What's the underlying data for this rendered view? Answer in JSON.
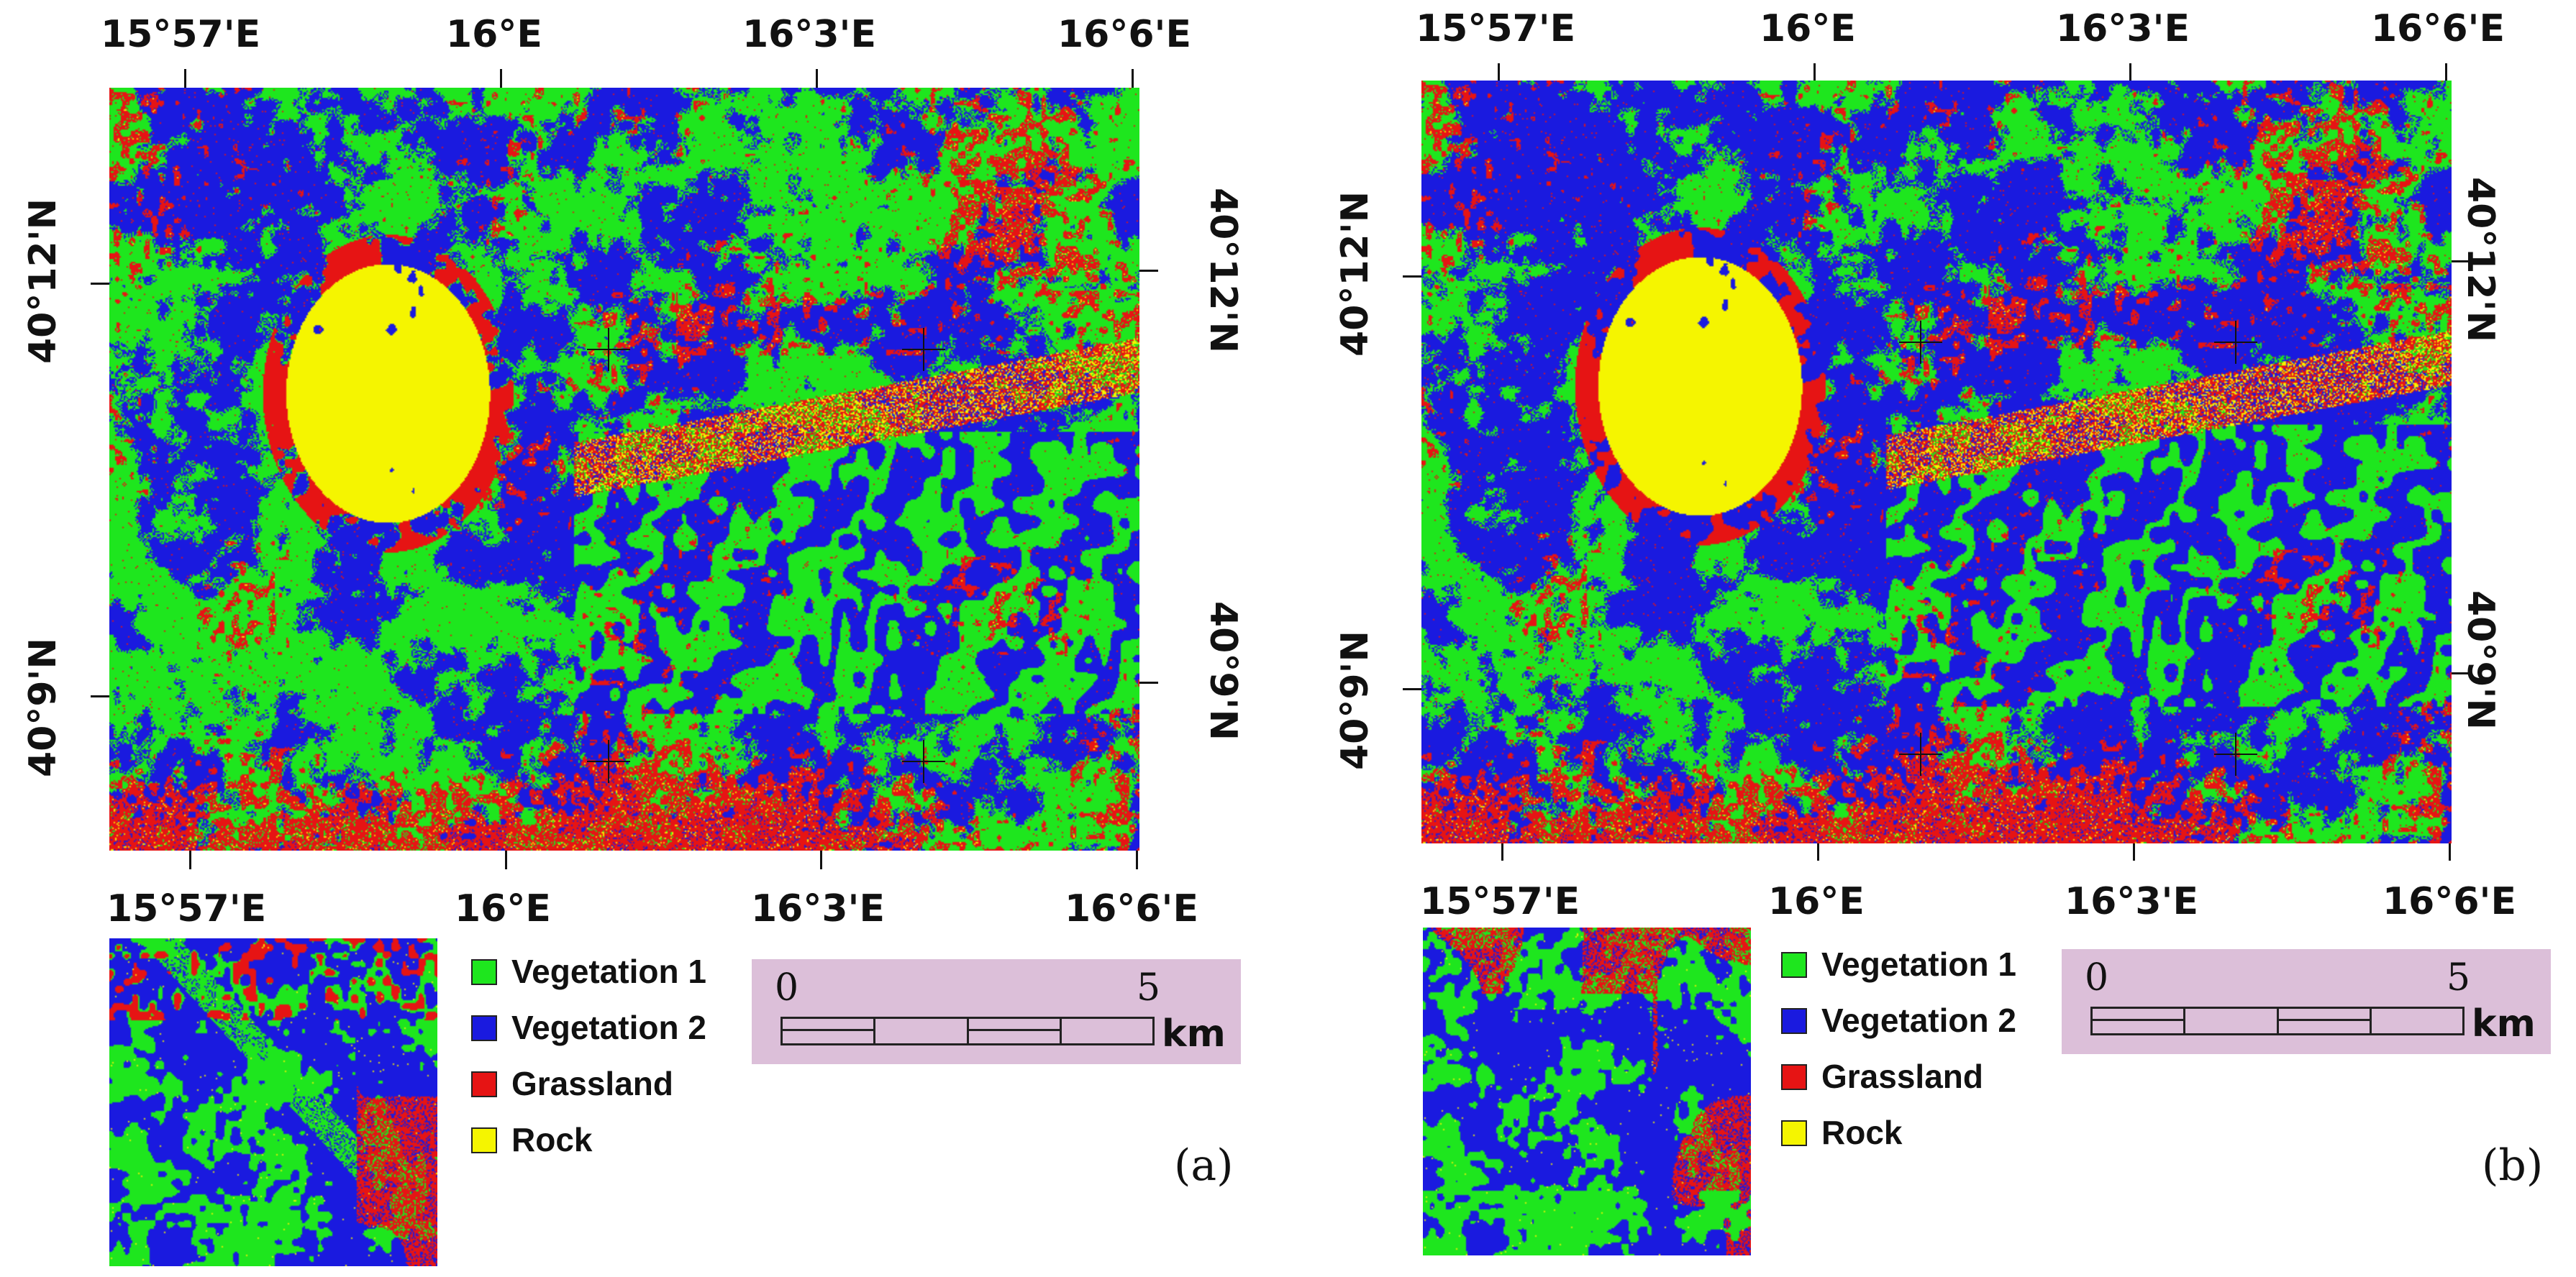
{
  "panels": [
    {
      "id": "a",
      "tag": "(a)",
      "top_lon_labels": [
        "15°57'E",
        "16°E",
        "16°3'E",
        "16°6'E"
      ],
      "bottom_lon_labels": [
        "15°57'E",
        "16°E",
        "16°3'E",
        "16°6'E"
      ],
      "left_lat_labels": [
        "40°12'N",
        "40°9'N"
      ],
      "right_lat_labels": [
        "40°12'N",
        "40°9'N"
      ]
    },
    {
      "id": "b",
      "tag": "(b)",
      "top_lon_labels": [
        "15°57'E",
        "16°E",
        "16°3'E",
        "16°6'E"
      ],
      "bottom_lon_labels": [
        "15°57'E",
        "16°E",
        "16°3'E",
        "16°6'E"
      ],
      "left_lat_labels": [
        "40°12'N",
        "40°9'N"
      ],
      "right_lat_labels": [
        "40°12'N",
        "40°9'N"
      ]
    }
  ],
  "legend": [
    {
      "label": "Vegetation 1",
      "color": "#1ee61e"
    },
    {
      "label": "Vegetation 2",
      "color": "#1a1adf"
    },
    {
      "label": "Grassland",
      "color": "#e61414"
    },
    {
      "label": "Rock",
      "color": "#f5f500"
    }
  ],
  "scale": {
    "start": "0",
    "end": "5",
    "unit": "km"
  },
  "classes": {
    "vegetation1": "#1ee61e",
    "vegetation2": "#1a1adf",
    "grassland": "#e61414",
    "rock": "#f5f500"
  }
}
